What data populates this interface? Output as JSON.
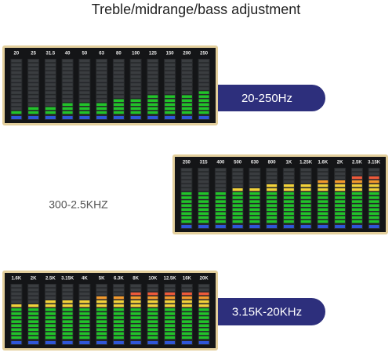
{
  "title": "Treble/midrange/bass adjustment",
  "panels": [
    {
      "bands": [
        "20",
        "25",
        "31.5",
        "40",
        "50",
        "63",
        "80",
        "100",
        "125",
        "150",
        "200",
        "250"
      ],
      "levels": [
        1,
        2,
        2,
        3,
        3,
        3,
        4,
        4,
        5,
        5,
        5,
        6
      ],
      "range_label": "20-250Hz"
    },
    {
      "bands": [
        "250",
        "315",
        "400",
        "500",
        "630",
        "800",
        "1K",
        "1.25K",
        "1.6K",
        "2K",
        "2.5K",
        "3.15K"
      ],
      "levels": [
        8,
        8,
        8,
        9,
        9,
        10,
        10,
        10,
        11,
        11,
        12,
        12
      ],
      "range_label": "300-2.5KHZ"
    },
    {
      "bands": [
        "1.6K",
        "2K",
        "2.5K",
        "3.15K",
        "4K",
        "5K",
        "6.3K",
        "8K",
        "10K",
        "12.5K",
        "16K",
        "20K"
      ],
      "levels": [
        9,
        9,
        10,
        10,
        10,
        11,
        11,
        12,
        12,
        12,
        12,
        12
      ],
      "range_label": "3.15K-20KHz"
    }
  ]
}
